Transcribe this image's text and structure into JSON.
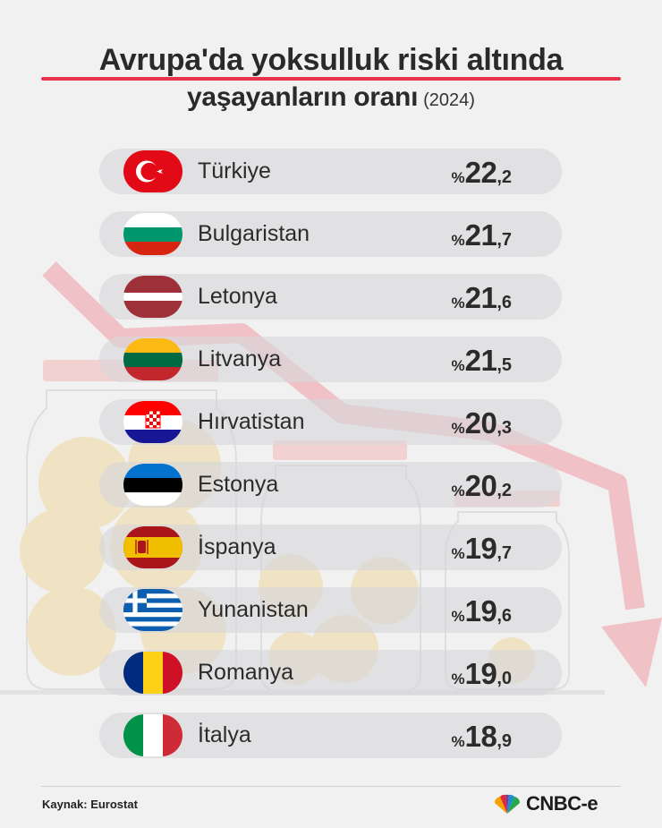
{
  "title": {
    "line1": "Avrupa'da yoksulluk riski altında",
    "line2": "yaşayanların oranı",
    "year": "(2024)"
  },
  "chart_data": {
    "type": "bar",
    "categories": [
      "Türkiye",
      "Bulgaristan",
      "Letonya",
      "Litvanya",
      "Hırvatistan",
      "Estonya",
      "İspanya",
      "Yunanistan",
      "Romanya",
      "İtalya"
    ],
    "values": [
      22.2,
      21.7,
      21.6,
      21.5,
      20.3,
      20.2,
      19.7,
      19.6,
      19.0,
      18.9
    ],
    "labels": [
      {
        "prefix": "%",
        "int": "22",
        "dec": ",2"
      },
      {
        "prefix": "%",
        "int": "21",
        "dec": ",7"
      },
      {
        "prefix": "%",
        "int": "21",
        "dec": ",6"
      },
      {
        "prefix": "%",
        "int": "21",
        "dec": ",5"
      },
      {
        "prefix": "%",
        "int": "20",
        "dec": ",3"
      },
      {
        "prefix": "%",
        "int": "20",
        "dec": ",2"
      },
      {
        "prefix": "%",
        "int": "19",
        "dec": ",7"
      },
      {
        "prefix": "%",
        "int": "19",
        "dec": ",6"
      },
      {
        "prefix": "%",
        "int": "19",
        "dec": ",0"
      },
      {
        "prefix": "%",
        "int": "18",
        "dec": ",9"
      }
    ],
    "flags": [
      "turkey-flag-icon",
      "bulgaria-flag-icon",
      "latvia-flag-icon",
      "lithuania-flag-icon",
      "croatia-flag-icon",
      "estonia-flag-icon",
      "spain-flag-icon",
      "greece-flag-icon",
      "romania-flag-icon",
      "italy-flag-icon"
    ]
  },
  "footer": {
    "source": "Kaynak: Eurostat",
    "logo_text": "CNBC-e"
  },
  "colors": {
    "accent": "#e8334a",
    "background": "#f1f1f1",
    "row": "#d9d9dc",
    "text": "#2b2b2b"
  }
}
